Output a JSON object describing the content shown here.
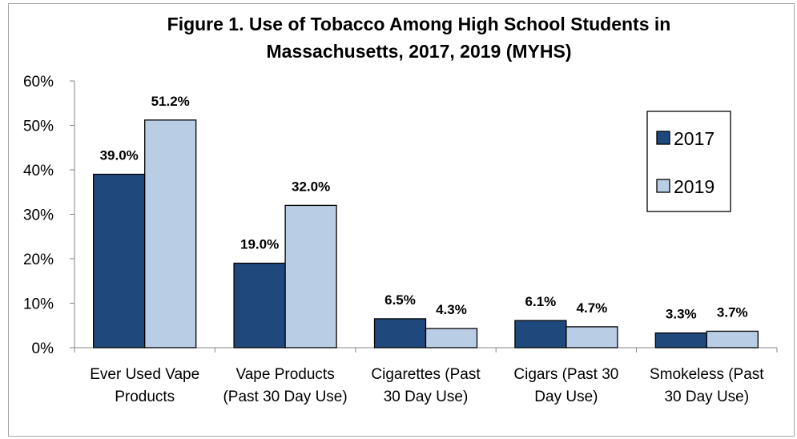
{
  "chart_data": {
    "type": "bar",
    "title": "Figure 1. Use of Tobacco Among High School Students in Massachusetts, 2017, 2019 (MYHS)",
    "title_lines": [
      "Figure 1. Use of Tobacco Among High School Students in",
      "Massachusetts, 2017, 2019 (MYHS)"
    ],
    "categories": [
      [
        "Ever Used Vape",
        "Products"
      ],
      [
        "Vape Products",
        "(Past 30 Day Use)"
      ],
      [
        "Cigarettes (Past",
        "30 Day Use)"
      ],
      [
        "Cigars (Past 30",
        "Day Use)"
      ],
      [
        "Smokeless (Past",
        "30 Day Use)"
      ]
    ],
    "series": [
      {
        "name": "2017",
        "values": [
          39.0,
          19.0,
          6.5,
          6.1,
          3.3
        ],
        "labels": [
          "39.0%",
          "19.0%",
          "6.5%",
          "6.1%",
          "3.3%"
        ],
        "color": "#1f497d"
      },
      {
        "name": "2019",
        "values": [
          51.2,
          32.0,
          4.3,
          4.7,
          3.7
        ],
        "labels": [
          "51.2%",
          "32.0%",
          "4.3%",
          "4.7%",
          "3.7%"
        ],
        "color": "#b9cde5"
      }
    ],
    "yticks": [
      "0%",
      "10%",
      "20%",
      "30%",
      "40%",
      "50%",
      "60%"
    ],
    "ylim": [
      0,
      60
    ],
    "xlabel": "",
    "ylabel": "",
    "grid": false,
    "legend_position": "right"
  }
}
